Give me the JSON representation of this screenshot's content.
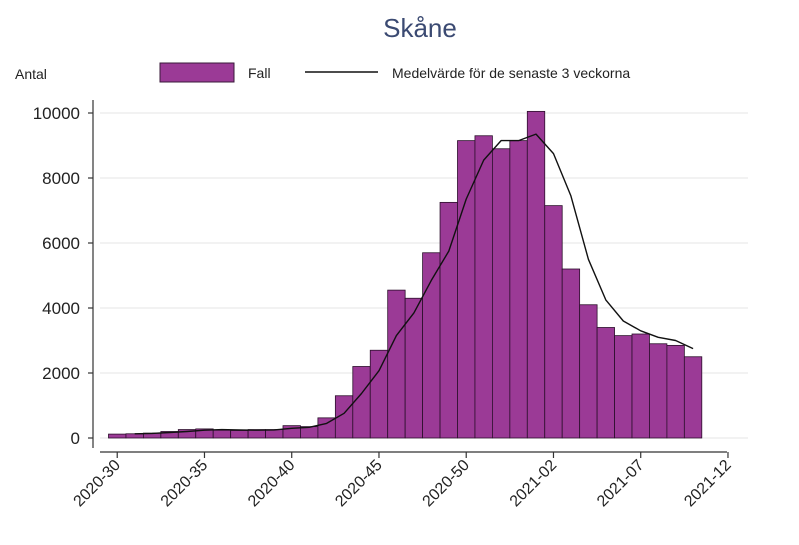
{
  "chart_data": {
    "type": "bar",
    "title": "Skåne",
    "ylabel": "Antal",
    "xlabel": "",
    "ylim": [
      0,
      10000
    ],
    "yticks": [
      0,
      2000,
      4000,
      6000,
      8000,
      10000
    ],
    "ytick_labels": [
      "0",
      "2000",
      "4000",
      "6000",
      "8000",
      "10000"
    ],
    "x_start_week": "2020-30",
    "x_tick_labels": [
      "2020-30",
      "2020-35",
      "2020-40",
      "2020-45",
      "2020-50",
      "2021-02",
      "2021-07",
      "2021-12"
    ],
    "grid": true,
    "legend_position": "top",
    "series": [
      {
        "name": "Fall",
        "type": "bar",
        "color": "#9b3a96",
        "values": [
          120,
          130,
          150,
          200,
          260,
          280,
          240,
          230,
          260,
          260,
          380,
          350,
          620,
          1300,
          2200,
          2700,
          4550,
          4300,
          5700,
          7250,
          9150,
          9300,
          8900,
          9150,
          10050,
          7150,
          5200,
          4100,
          3400,
          3150,
          3200,
          2900,
          2850,
          2500
        ]
      },
      {
        "name": "Medelvärde för de senaste 3 veckorna",
        "type": "line",
        "color": "#111111",
        "values": [
          null,
          130,
          140,
          170,
          200,
          240,
          260,
          250,
          240,
          250,
          300,
          330,
          450,
          760,
          1370,
          2070,
          3150,
          3850,
          4850,
          5750,
          7350,
          8550,
          9150,
          9150,
          9350,
          8750,
          7450,
          5500,
          4250,
          3600,
          3300,
          3100,
          3000,
          2750
        ]
      }
    ]
  }
}
